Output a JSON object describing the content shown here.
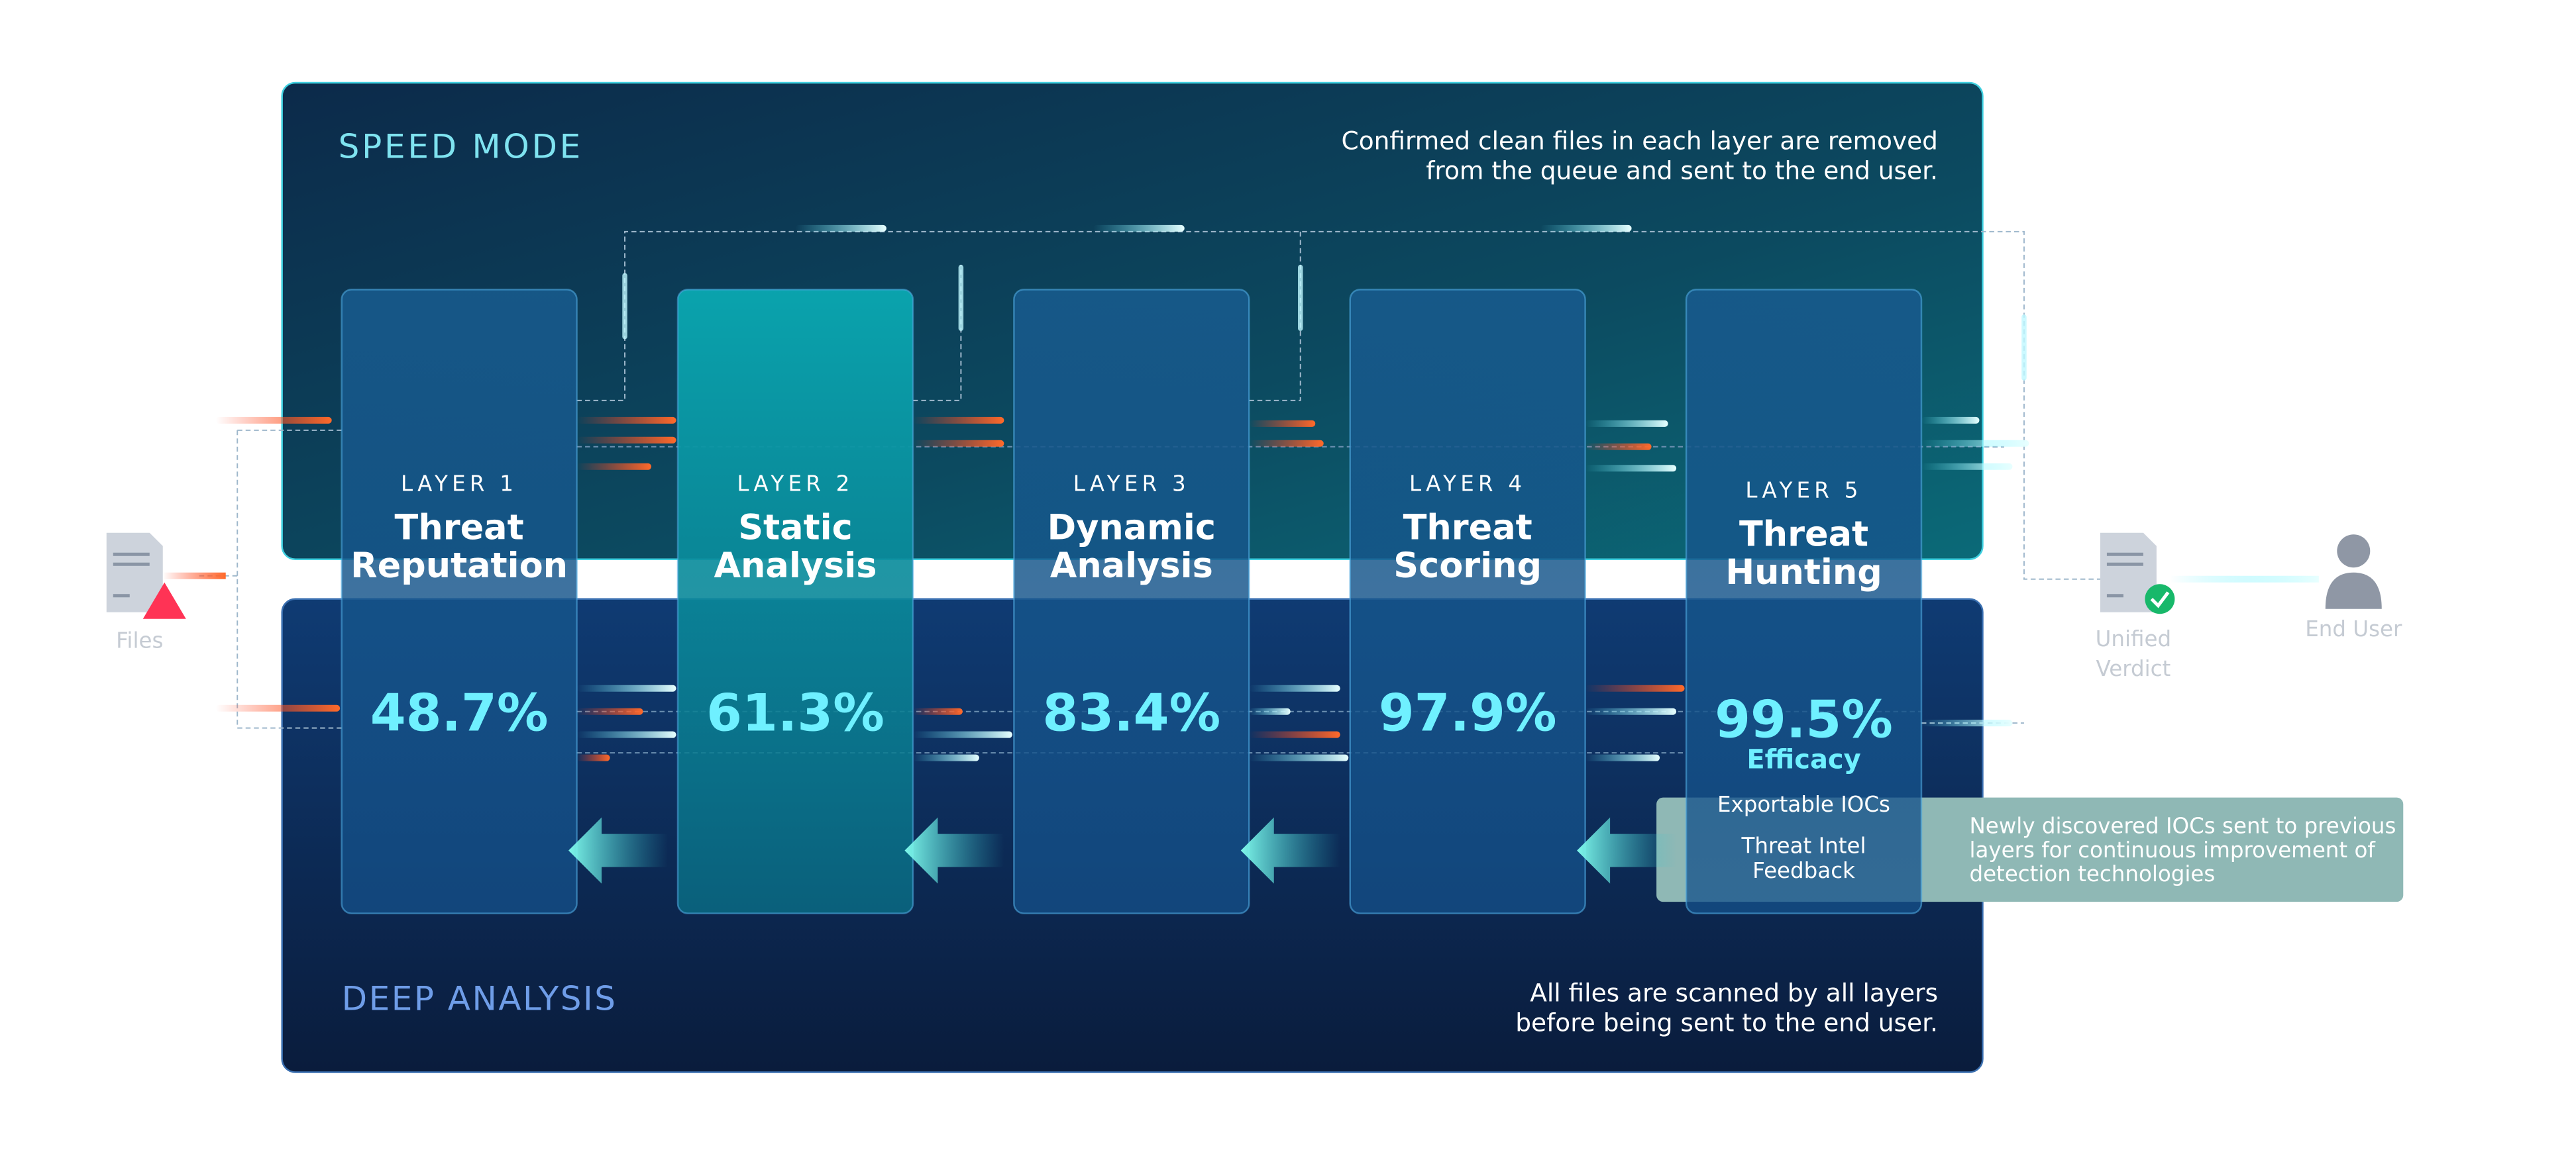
{
  "speed_mode": {
    "title": "SPEED MODE",
    "note": [
      "Confirmed clean files in each layer are removed",
      "from the queue and sent to the end user."
    ]
  },
  "deep_analysis": {
    "title": "DEEP ANALYSIS",
    "note": [
      "All files are scanned by all layers",
      "before being sent to the end user."
    ]
  },
  "layers": [
    {
      "label": "LAYER 1",
      "name": [
        "Threat",
        "Reputation"
      ],
      "rate": "48.7%"
    },
    {
      "label": "LAYER 2",
      "name": [
        "Static",
        "Analysis"
      ],
      "rate": "61.3%"
    },
    {
      "label": "LAYER 3",
      "name": [
        "Dynamic",
        "Analysis"
      ],
      "rate": "83.4%"
    },
    {
      "label": "LAYER 4",
      "name": [
        "Threat",
        "Scoring"
      ],
      "rate": "97.9%"
    },
    {
      "label": "LAYER 5",
      "name": [
        "Threat",
        "Hunting"
      ],
      "rate": "99.5%",
      "rate_caption": "Efficacy",
      "outputs": [
        [
          "Exportable IOCs"
        ],
        [
          "Threat Intel",
          "Feedback"
        ]
      ]
    }
  ],
  "feedback_note": [
    "Newly discovered IOCs sent to previous",
    "layers for continuous improvement of",
    "detection technologies"
  ],
  "input": {
    "label": "Files"
  },
  "verdict": {
    "label": [
      "Unified",
      "Verdict"
    ]
  },
  "end_user": {
    "label": "End User"
  }
}
